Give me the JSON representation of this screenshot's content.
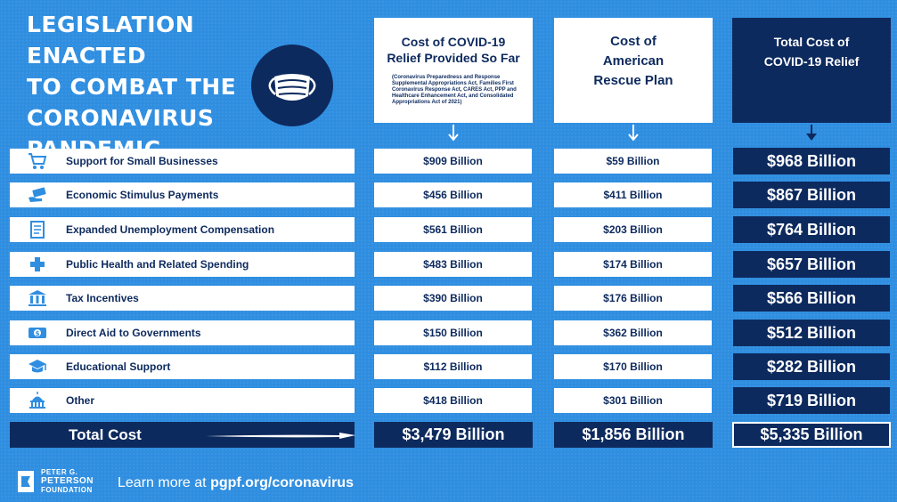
{
  "title": {
    "lines": [
      "LEGISLATION ENACTED",
      "TO COMBAT THE",
      "CORONAVIRUS",
      "PANDEMIC"
    ]
  },
  "columns": {
    "covid_relief": {
      "lines": [
        "Cost of COVID-19",
        "Relief Provided So Far"
      ],
      "note": "(Coronavirus Preparedness and Response Supplemental Appropriations Act, Families First Coronavirus Response Act, CARES Act, PPP and Healthcare Enhancement Act, and Consolidated Appropriations Act of 2021)"
    },
    "arp": {
      "lines": [
        "Cost of",
        "American",
        "Rescue Plan"
      ]
    },
    "total": {
      "lines": [
        "Total Cost of",
        "COVID-19 Relief"
      ]
    }
  },
  "chart_data": {
    "type": "table",
    "title": "Legislation Enacted to Combat the Coronavirus Pandemic",
    "columns": [
      "Cost of COVID-19 Relief Provided So Far",
      "Cost of American Rescue Plan",
      "Total Cost of COVID-19 Relief"
    ],
    "rows": [
      {
        "category": "Support for Small Businesses",
        "icon": "shopping-cart-icon",
        "covid_relief": "$909 Billion",
        "arp": "$59 Billion",
        "total": "$968 Billion"
      },
      {
        "category": "Economic Stimulus Payments",
        "icon": "money-hand-icon",
        "covid_relief": "$456 Billion",
        "arp": "$411 Billion",
        "total": "$867 Billion"
      },
      {
        "category": "Expanded Unemployment Compensation",
        "icon": "document-icon",
        "covid_relief": "$561 Billion",
        "arp": "$203 Billion",
        "total": "$764 Billion"
      },
      {
        "category": "Public Health and Related Spending",
        "icon": "medical-cross-icon",
        "covid_relief": "$483 Billion",
        "arp": "$174 Billion",
        "total": "$657 Billion"
      },
      {
        "category": "Tax Incentives",
        "icon": "building-columns-icon",
        "covid_relief": "$390 Billion",
        "arp": "$176 Billion",
        "total": "$566 Billion"
      },
      {
        "category": "Direct Aid to Governments",
        "icon": "cash-icon",
        "covid_relief": "$150 Billion",
        "arp": "$362 Billion",
        "total": "$512 Billion"
      },
      {
        "category": "Educational Support",
        "icon": "graduation-cap-icon",
        "covid_relief": "$112 Billion",
        "arp": "$170 Billion",
        "total": "$282 Billion"
      },
      {
        "category": "Other",
        "icon": "capitol-icon",
        "covid_relief": "$418 Billion",
        "arp": "$301 Billion",
        "total": "$719 Billion"
      }
    ],
    "totals": {
      "label": "Total Cost",
      "covid_relief": "$3,479 Billion",
      "arp": "$1,856 Billion",
      "total": "$5,335 Billion"
    }
  },
  "footer": {
    "logo_lines": [
      "PETER G.",
      "PETERSON",
      "FOUNDATION"
    ],
    "learn_prefix": "Learn more at",
    "url": "pgpf.org/coronavirus"
  },
  "colors": {
    "background": "#2f8ee0",
    "navy": "#0d2a5e",
    "white": "#ffffff"
  }
}
